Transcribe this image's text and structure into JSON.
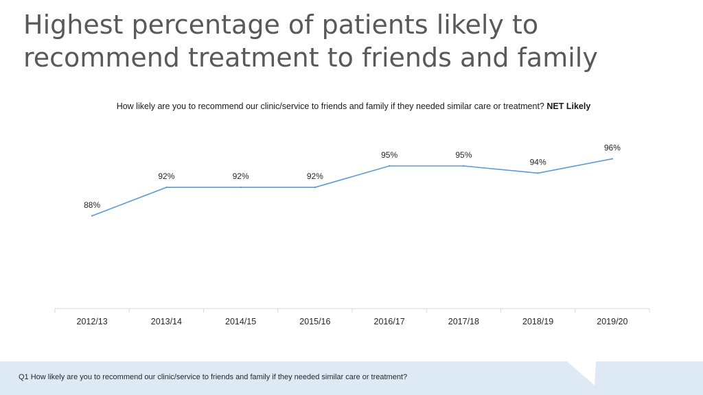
{
  "slide": {
    "title": "Highest percentage of patients likely to recommend treatment to friends and family",
    "footnote": "Q1 How likely are you to recommend our clinic/service to friends and family if they needed similar care or treatment?"
  },
  "chart_data": {
    "type": "line",
    "title": "How likely are you to recommend our clinic/service to friends and family if they needed similar care or treatment?",
    "title_emphasis": "NET Likely",
    "categories": [
      "2012/13",
      "2013/14",
      "2014/15",
      "2015/16",
      "2016/17",
      "2017/18",
      "2018/19",
      "2019/20"
    ],
    "series": [
      {
        "values": [
          88,
          92,
          92,
          92,
          95,
          95,
          94,
          96
        ],
        "labels": [
          "88%",
          "92%",
          "92%",
          "92%",
          "95%",
          "95%",
          "94%",
          "96%"
        ]
      }
    ],
    "ylim": [
      75,
      100
    ],
    "grid": false,
    "legend": "none",
    "line_color": "#5b9bd5"
  },
  "colors": {
    "title": "#595959",
    "footer_band": "#dde9f5",
    "axis": "#d9d9d9"
  }
}
